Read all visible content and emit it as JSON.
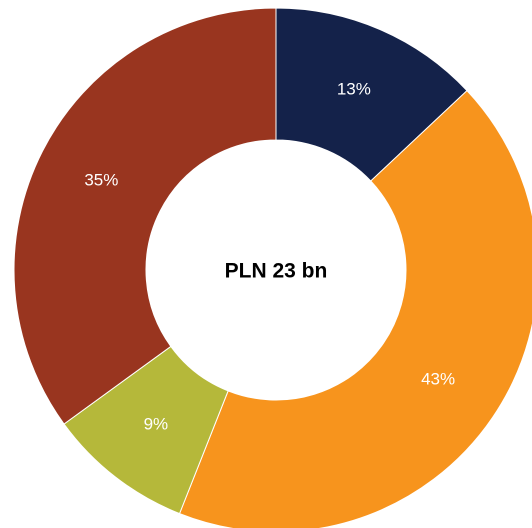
{
  "chart_data": {
    "type": "donut",
    "center_label": "PLN 23 bn",
    "values": [
      13,
      43,
      9,
      35
    ],
    "value_labels": [
      "13%",
      "43%",
      "9%",
      "35%"
    ],
    "colors": [
      "#14224a",
      "#f7941d",
      "#b5b83a",
      "#99351f"
    ]
  }
}
